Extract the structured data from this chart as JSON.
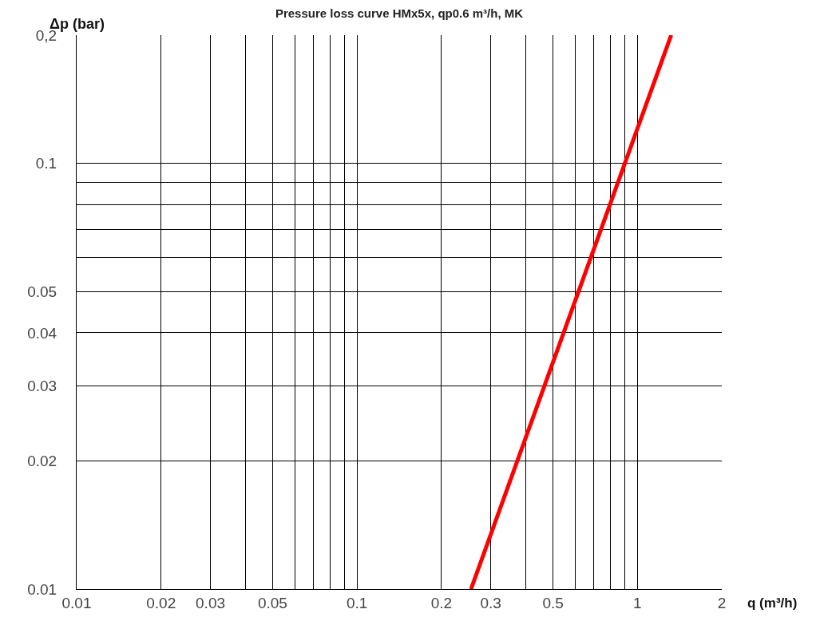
{
  "chart_data": {
    "type": "line",
    "title": "Pressure loss curve HMx5x, qp0.6 m³/h, MK",
    "xlabel": "q (m³/h)",
    "ylabel": "Δp (bar)",
    "log": "xy",
    "grid": true,
    "legend": false,
    "marker": "none",
    "line_style": "solid",
    "series": [
      {
        "color": "#ff0000",
        "x": [
          0.255,
          1.32
        ],
        "values": [
          0.01,
          0.2
        ]
      }
    ],
    "xlim": [
      0.01,
      2
    ],
    "ylim": [
      0.01,
      0.2
    ],
    "xticks": [
      0.01,
      0.02,
      0.03,
      {
        "value": 0.04,
        "label": null
      },
      0.05,
      {
        "value": 0.06,
        "label": null
      },
      {
        "value": 0.07,
        "label": null
      },
      {
        "value": 0.08,
        "label": null
      },
      {
        "value": 0.09,
        "label": null
      },
      0.1,
      0.2,
      0.3,
      {
        "value": 0.4,
        "label": null
      },
      0.5,
      {
        "value": 0.6,
        "label": null
      },
      {
        "value": 0.7,
        "label": null
      },
      {
        "value": 0.8,
        "label": null
      },
      {
        "value": 0.9,
        "label": null
      },
      1,
      2
    ],
    "yticks": [
      0.01,
      0.02,
      0.03,
      0.04,
      0.05,
      {
        "value": 0.06,
        "label": null
      },
      {
        "value": 0.07,
        "label": null
      },
      {
        "value": 0.08,
        "label": null
      },
      {
        "value": 0.09,
        "label": null
      },
      0.1,
      {
        "value": 0.2,
        "label": "0,2"
      }
    ]
  }
}
